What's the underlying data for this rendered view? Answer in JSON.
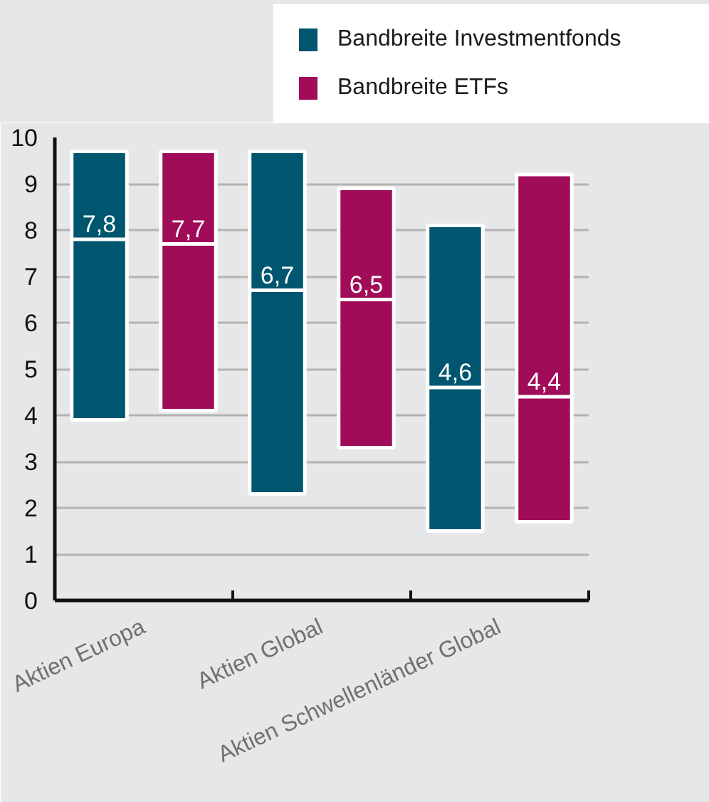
{
  "chart_data": {
    "type": "box",
    "categories": [
      "Aktien Europa",
      "Aktien Global",
      "Aktien Schwellenländer Global"
    ],
    "series": [
      {
        "name": "Bandbreite Investmentfonds",
        "color": "#00566f",
        "boxes": [
          {
            "low": 3.9,
            "q1": 3.9,
            "median": 7.8,
            "q3": 9.7,
            "high": 9.7
          },
          {
            "low": 2.3,
            "q1": 2.3,
            "median": 6.7,
            "q3": 9.7,
            "high": 9.7
          },
          {
            "low": 1.5,
            "q1": 1.5,
            "median": 4.6,
            "q3": 8.1,
            "high": 8.1
          }
        ],
        "value_labels": [
          "7,8",
          "6,7",
          "4,6"
        ]
      },
      {
        "name": "Bandbreite ETFs",
        "color": "#a00c58",
        "boxes": [
          {
            "low": 4.1,
            "q1": 4.1,
            "median": 7.7,
            "q3": 9.7,
            "high": 9.7
          },
          {
            "low": 3.3,
            "q1": 3.3,
            "median": 6.5,
            "q3": 8.9,
            "high": 8.9
          },
          {
            "low": 1.7,
            "q1": 1.7,
            "median": 4.4,
            "q3": 9.2,
            "high": 9.2
          }
        ],
        "value_labels": [
          "7,7",
          "6,5",
          "4,4"
        ]
      }
    ],
    "ylim": [
      0,
      10
    ],
    "yticks": [
      0,
      1,
      2,
      3,
      4,
      5,
      6,
      7,
      8,
      9,
      10
    ],
    "grid": "y",
    "legend": "top right"
  }
}
